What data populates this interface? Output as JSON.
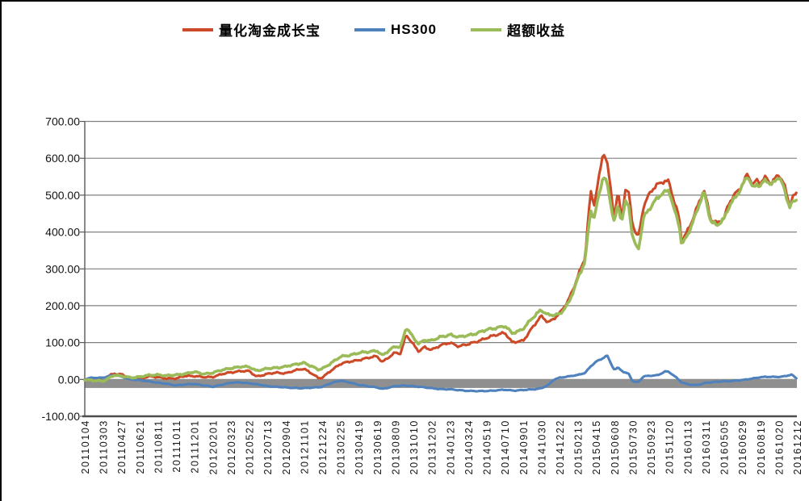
{
  "chart_data": {
    "type": "line",
    "title": "",
    "legend_position": "top",
    "grid": true,
    "ylim": [
      -100,
      700
    ],
    "y_ticks": [
      700,
      600,
      500,
      400,
      300,
      200,
      100,
      0,
      -100
    ],
    "y_tick_labels": [
      "700.00",
      "600.00",
      "500.00",
      "400.00",
      "300.00",
      "200.00",
      "100.00",
      "0.00",
      "-100.00"
    ],
    "x_tick_labels": [
      "20110104",
      "20110303",
      "20110427",
      "20110621",
      "20110811",
      "20111011",
      "20111201",
      "20120201",
      "20120323",
      "20120522",
      "20120713",
      "20120904",
      "20121101",
      "20121224",
      "20130225",
      "20130419",
      "20130619",
      "20130809",
      "20131010",
      "20131202",
      "20140123",
      "20140324",
      "20140519",
      "20140710",
      "20140901",
      "20141030",
      "20141222",
      "20150213",
      "20150415",
      "20150608",
      "20150730",
      "20150923",
      "20151120",
      "20160113",
      "20160311",
      "20160505",
      "20160629",
      "20160819",
      "20161020",
      "20161212"
    ],
    "x_range_dates": [
      "20110104",
      "20161212"
    ],
    "zero_band": {
      "color": "#8f8f8f",
      "value_top": -1,
      "value_bottom": -23
    },
    "axis_color": "#595959",
    "grid_color": "#808080",
    "series": [
      {
        "key": "quant-gold-growth",
        "name": "量化淘金成长宝",
        "color": "#cc4a28",
        "noise_amp": 4.5,
        "anchors": [
          [
            0,
            0
          ],
          [
            0.5,
            4
          ],
          [
            1,
            3
          ],
          [
            1.6,
            16
          ],
          [
            2,
            14
          ],
          [
            2.5,
            3
          ],
          [
            3,
            2
          ],
          [
            3.5,
            8
          ],
          [
            4,
            6
          ],
          [
            4.5,
            3
          ],
          [
            5,
            2
          ],
          [
            5.5,
            10
          ],
          [
            6,
            9
          ],
          [
            6.5,
            6
          ],
          [
            7,
            7
          ],
          [
            7.5,
            14
          ],
          [
            8,
            19
          ],
          [
            8.5,
            23
          ],
          [
            9,
            22
          ],
          [
            9.4,
            8
          ],
          [
            10,
            15
          ],
          [
            10.5,
            18
          ],
          [
            11,
            17
          ],
          [
            11.5,
            24
          ],
          [
            12,
            29
          ],
          [
            12.4,
            18
          ],
          [
            12.8,
            3
          ],
          [
            13,
            4
          ],
          [
            13.5,
            25
          ],
          [
            14,
            42
          ],
          [
            14.5,
            48
          ],
          [
            15,
            53
          ],
          [
            15.5,
            58
          ],
          [
            16,
            63
          ],
          [
            16.3,
            48
          ],
          [
            17,
            72
          ],
          [
            17.3,
            70
          ],
          [
            17.6,
            123
          ],
          [
            18,
            94
          ],
          [
            18.3,
            75
          ],
          [
            18.6,
            88
          ],
          [
            19,
            81
          ],
          [
            19.5,
            92
          ],
          [
            20,
            100
          ],
          [
            20.5,
            90
          ],
          [
            21,
            95
          ],
          [
            21.5,
            104
          ],
          [
            22,
            112
          ],
          [
            22.5,
            120
          ],
          [
            23,
            128
          ],
          [
            23.4,
            100
          ],
          [
            23.7,
            102
          ],
          [
            24,
            105
          ],
          [
            24.5,
            140
          ],
          [
            25,
            171
          ],
          [
            25.4,
            155
          ],
          [
            26,
            178
          ],
          [
            26.5,
            215
          ],
          [
            27,
            280
          ],
          [
            27.4,
            330
          ],
          [
            27.7,
            509
          ],
          [
            27.9,
            476
          ],
          [
            28.2,
            560
          ],
          [
            28.4,
            620
          ],
          [
            28.6,
            590
          ],
          [
            29,
            440
          ],
          [
            29.2,
            509
          ],
          [
            29.4,
            439
          ],
          [
            29.6,
            516
          ],
          [
            29.8,
            505
          ],
          [
            30,
            420
          ],
          [
            30.3,
            380
          ],
          [
            30.6,
            470
          ],
          [
            31,
            513
          ],
          [
            31.6,
            535
          ],
          [
            32,
            538
          ],
          [
            32.3,
            480
          ],
          [
            32.55,
            440
          ],
          [
            32.7,
            373
          ],
          [
            33,
            400
          ],
          [
            33.4,
            450
          ],
          [
            33.9,
            515
          ],
          [
            34.3,
            432
          ],
          [
            34.6,
            425
          ],
          [
            35,
            437
          ],
          [
            35.3,
            480
          ],
          [
            35.6,
            500
          ],
          [
            36,
            528
          ],
          [
            36.3,
            560
          ],
          [
            36.6,
            525
          ],
          [
            36.8,
            540
          ],
          [
            37,
            532
          ],
          [
            37.3,
            550
          ],
          [
            37.6,
            532
          ],
          [
            38,
            556
          ],
          [
            38.3,
            528
          ],
          [
            38.6,
            475
          ],
          [
            38.8,
            498
          ],
          [
            39,
            505
          ]
        ]
      },
      {
        "key": "hs300",
        "name": "HS300",
        "color": "#4f81bd",
        "noise_amp": 2.2,
        "anchors": [
          [
            0,
            0
          ],
          [
            0.3,
            4
          ],
          [
            1,
            5
          ],
          [
            1.6,
            12
          ],
          [
            2,
            8
          ],
          [
            2.5,
            0
          ],
          [
            3,
            -2
          ],
          [
            3.5,
            -5
          ],
          [
            4,
            -9
          ],
          [
            4.5,
            -12
          ],
          [
            5,
            -16
          ],
          [
            5.5,
            -14
          ],
          [
            6,
            -12
          ],
          [
            6.5,
            -16
          ],
          [
            7,
            -20
          ],
          [
            7.5,
            -14
          ],
          [
            8,
            -9
          ],
          [
            8.5,
            -8
          ],
          [
            9,
            -10
          ],
          [
            9.5,
            -14
          ],
          [
            10,
            -18
          ],
          [
            10.5,
            -20
          ],
          [
            11,
            -22
          ],
          [
            11.5,
            -23
          ],
          [
            12,
            -24
          ],
          [
            12.5,
            -22
          ],
          [
            13,
            -20
          ],
          [
            13.5,
            -10
          ],
          [
            14,
            -3
          ],
          [
            14.5,
            -8
          ],
          [
            15,
            -15
          ],
          [
            15.5,
            -18
          ],
          [
            16,
            -22
          ],
          [
            16.3,
            -26
          ],
          [
            17,
            -18
          ],
          [
            17.5,
            -17
          ],
          [
            18,
            -18
          ],
          [
            18.5,
            -21
          ],
          [
            19,
            -24
          ],
          [
            19.5,
            -26
          ],
          [
            20,
            -27
          ],
          [
            20.5,
            -29
          ],
          [
            21,
            -31
          ],
          [
            21.5,
            -32
          ],
          [
            22,
            -31
          ],
          [
            22.5,
            -30
          ],
          [
            23,
            -28
          ],
          [
            23.5,
            -30
          ],
          [
            24,
            -29
          ],
          [
            24.5,
            -27
          ],
          [
            25,
            -24
          ],
          [
            25.4,
            -15
          ],
          [
            25.7,
            0
          ],
          [
            26,
            5
          ],
          [
            26.5,
            8
          ],
          [
            27,
            12
          ],
          [
            27.4,
            18
          ],
          [
            27.7,
            35
          ],
          [
            28,
            48
          ],
          [
            28.3,
            55
          ],
          [
            28.6,
            66
          ],
          [
            28.8,
            45
          ],
          [
            29,
            26
          ],
          [
            29.2,
            32
          ],
          [
            29.5,
            20
          ],
          [
            29.8,
            15
          ],
          [
            30,
            -5
          ],
          [
            30.3,
            -8
          ],
          [
            30.6,
            8
          ],
          [
            31,
            10
          ],
          [
            31.4,
            12
          ],
          [
            31.8,
            22
          ],
          [
            32,
            20
          ],
          [
            32.4,
            5
          ],
          [
            32.7,
            -8
          ],
          [
            33,
            -13
          ],
          [
            33.5,
            -16
          ],
          [
            34,
            -9
          ],
          [
            34.5,
            -7
          ],
          [
            35,
            -5
          ],
          [
            35.5,
            -4
          ],
          [
            36,
            -2
          ],
          [
            36.5,
            2
          ],
          [
            37,
            6
          ],
          [
            37.5,
            7
          ],
          [
            38,
            7
          ],
          [
            38.4,
            9
          ],
          [
            38.7,
            13
          ],
          [
            39,
            2
          ]
        ]
      },
      {
        "key": "excess-return",
        "name": "超额收益",
        "color": "#9bbb59",
        "noise_amp": 4.5,
        "anchors": [
          [
            0,
            0
          ],
          [
            0.5,
            -3
          ],
          [
            1,
            -5
          ],
          [
            1.6,
            12
          ],
          [
            2,
            9
          ],
          [
            2.5,
            5
          ],
          [
            3,
            7
          ],
          [
            3.5,
            11
          ],
          [
            4,
            13
          ],
          [
            4.5,
            10
          ],
          [
            5,
            12
          ],
          [
            5.5,
            16
          ],
          [
            6,
            20
          ],
          [
            6.5,
            15
          ],
          [
            7,
            18
          ],
          [
            7.5,
            25
          ],
          [
            8,
            31
          ],
          [
            8.5,
            34
          ],
          [
            9,
            34
          ],
          [
            9.4,
            24
          ],
          [
            10,
            29
          ],
          [
            10.5,
            32
          ],
          [
            11,
            35
          ],
          [
            11.5,
            40
          ],
          [
            12,
            46
          ],
          [
            12.4,
            36
          ],
          [
            12.8,
            26
          ],
          [
            13,
            29
          ],
          [
            13.5,
            45
          ],
          [
            14,
            61
          ],
          [
            14.5,
            66
          ],
          [
            15,
            72
          ],
          [
            15.5,
            74
          ],
          [
            16,
            79
          ],
          [
            16.3,
            65
          ],
          [
            17,
            90
          ],
          [
            17.3,
            88
          ],
          [
            17.6,
            142
          ],
          [
            18,
            112
          ],
          [
            18.3,
            96
          ],
          [
            18.6,
            108
          ],
          [
            19,
            105
          ],
          [
            19.5,
            115
          ],
          [
            20,
            122
          ],
          [
            20.5,
            114
          ],
          [
            21,
            120
          ],
          [
            21.5,
            126
          ],
          [
            22,
            134
          ],
          [
            22.5,
            140
          ],
          [
            23,
            145
          ],
          [
            23.4,
            125
          ],
          [
            23.7,
            130
          ],
          [
            24,
            138
          ],
          [
            24.5,
            165
          ],
          [
            25,
            189
          ],
          [
            25.4,
            175
          ],
          [
            26,
            175
          ],
          [
            26.5,
            208
          ],
          [
            27,
            272
          ],
          [
            27.4,
            320
          ],
          [
            27.7,
            461
          ],
          [
            27.9,
            440
          ],
          [
            28.2,
            510
          ],
          [
            28.4,
            552
          ],
          [
            28.6,
            530
          ],
          [
            29,
            425
          ],
          [
            29.2,
            476
          ],
          [
            29.4,
            430
          ],
          [
            29.6,
            480
          ],
          [
            29.8,
            468
          ],
          [
            30,
            385
          ],
          [
            30.3,
            348
          ],
          [
            30.6,
            440
          ],
          [
            31,
            468
          ],
          [
            31.6,
            505
          ],
          [
            32,
            515
          ],
          [
            32.3,
            455
          ],
          [
            32.55,
            420
          ],
          [
            32.7,
            362
          ],
          [
            33,
            392
          ],
          [
            33.4,
            440
          ],
          [
            33.9,
            508
          ],
          [
            34.3,
            428
          ],
          [
            34.6,
            420
          ],
          [
            35,
            433
          ],
          [
            35.3,
            470
          ],
          [
            35.6,
            492
          ],
          [
            36,
            525
          ],
          [
            36.3,
            553
          ],
          [
            36.6,
            515
          ],
          [
            36.8,
            532
          ],
          [
            37,
            525
          ],
          [
            37.3,
            545
          ],
          [
            37.6,
            525
          ],
          [
            38,
            550
          ],
          [
            38.3,
            520
          ],
          [
            38.6,
            468
          ],
          [
            38.8,
            482
          ],
          [
            39,
            488
          ]
        ]
      }
    ]
  }
}
